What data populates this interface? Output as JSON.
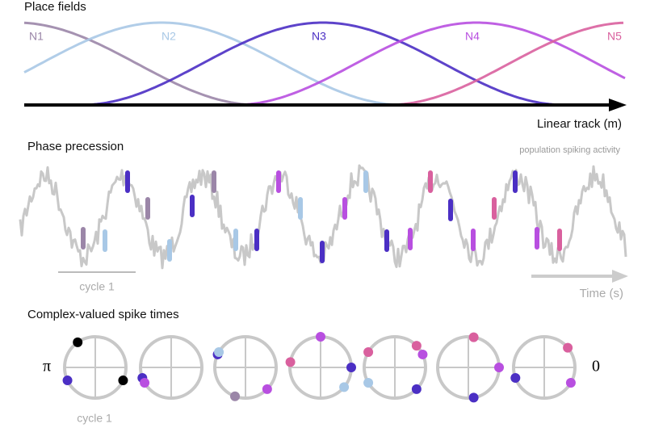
{
  "panels": {
    "place_fields": {
      "title": "Place fields",
      "neurons": [
        "N1",
        "N2",
        "N3",
        "N4",
        "N5"
      ],
      "axis_label": "Linear track (m)"
    },
    "phase_precession": {
      "title": "Phase precession",
      "annotation": "population spiking activity",
      "cycle_label": "cycle 1",
      "axis_label": "Time (s)"
    },
    "complex_spikes": {
      "title": "Complex-valued spike times",
      "left_label": "π",
      "right_label": "0",
      "cycle_label": "cycle 1"
    }
  }
}
